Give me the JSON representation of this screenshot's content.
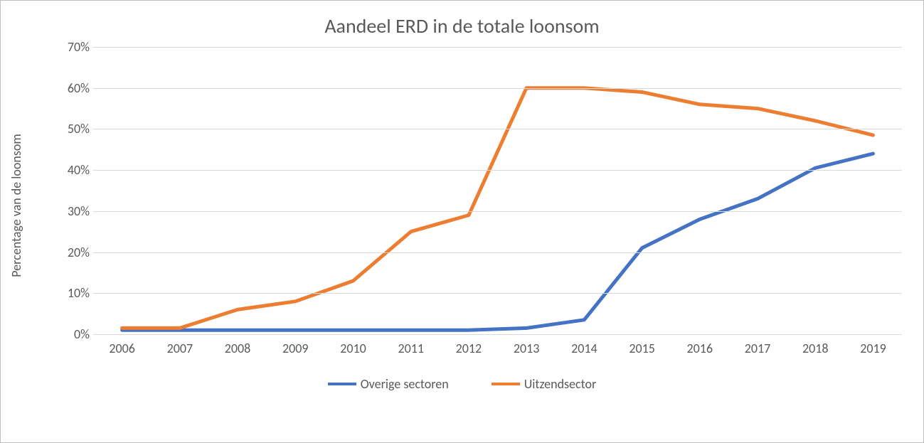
{
  "chart": {
    "type": "line",
    "title": "Aandeel ERD in de totale loonsom",
    "title_fontsize": 28,
    "y_axis_label": "Percentage van de loonsom",
    "label_fontsize": 18,
    "background_color": "#ffffff",
    "border_color": "#bfbfbf",
    "grid_color": "#d9d9d9",
    "text_color": "#595959",
    "ylim": [
      0,
      70
    ],
    "ytick_step": 10,
    "y_ticks": [
      "0%",
      "10%",
      "20%",
      "30%",
      "40%",
      "50%",
      "60%",
      "70%"
    ],
    "categories": [
      "2006",
      "2007",
      "2008",
      "2009",
      "2010",
      "2011",
      "2012",
      "2013",
      "2014",
      "2015",
      "2016",
      "2017",
      "2018",
      "2019"
    ],
    "series": [
      {
        "name": "Overige sectoren",
        "color": "#4472c4",
        "line_width": 5,
        "values": [
          1,
          1,
          1,
          1,
          1,
          1,
          1,
          1.5,
          3.5,
          21,
          28,
          33,
          40.5,
          44
        ]
      },
      {
        "name": "Uitzendsector",
        "color": "#ed7d31",
        "line_width": 5,
        "values": [
          1.5,
          1.5,
          6,
          8,
          13,
          25,
          29,
          60,
          60,
          59,
          56,
          55,
          52,
          48.5
        ]
      }
    ],
    "legend": {
      "position": "bottom",
      "items": [
        {
          "label": "Overige sectoren",
          "color": "#4472c4"
        },
        {
          "label": "Uitzendsector",
          "color": "#ed7d31"
        }
      ]
    }
  }
}
